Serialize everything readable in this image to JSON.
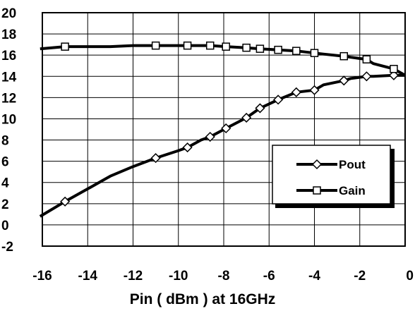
{
  "chart_data": {
    "type": "line",
    "xlabel": "Pin ( dBm ) at 16GHz",
    "xlim": [
      -16,
      0
    ],
    "ylim": [
      -2,
      20
    ],
    "xticks": [
      "-16",
      "-14",
      "-12",
      "-10",
      "-8",
      "-6",
      "-4",
      "-2",
      "0"
    ],
    "yticks": [
      "20",
      "18",
      "16",
      "14",
      "12",
      "10",
      "8",
      "6",
      "4",
      "2",
      "0",
      "-2"
    ],
    "grid": true,
    "legend_position": "bottom-right",
    "series": [
      {
        "name": "Pout",
        "marker": "diamond",
        "x": [
          -16.1,
          -15.0,
          -14.0,
          -13.0,
          -12.0,
          -11.0,
          -10.0,
          -9.6,
          -9.0,
          -8.6,
          -7.9,
          -7.0,
          -6.4,
          -5.6,
          -4.8,
          -4.0,
          -3.6,
          -2.7,
          -2.4,
          -1.7,
          -1.4,
          -0.5,
          0.0
        ],
        "y": [
          0.8,
          2.2,
          3.4,
          4.6,
          5.5,
          6.3,
          7.0,
          7.3,
          8.0,
          8.3,
          9.1,
          10.1,
          11.0,
          11.8,
          12.5,
          12.7,
          13.2,
          13.6,
          13.8,
          14.0,
          14.0,
          14.1,
          14.1
        ]
      },
      {
        "name": "Gain",
        "marker": "square",
        "x": [
          -16.1,
          -15.0,
          -14.0,
          -13.0,
          -12.0,
          -11.0,
          -10.0,
          -9.6,
          -9.0,
          -8.6,
          -7.9,
          -7.0,
          -6.4,
          -5.6,
          -4.8,
          -4.0,
          -3.6,
          -2.7,
          -2.4,
          -1.7,
          -1.4,
          -0.5,
          0.0
        ],
        "y": [
          16.6,
          16.8,
          16.8,
          16.8,
          16.9,
          16.9,
          16.9,
          16.9,
          16.9,
          16.9,
          16.8,
          16.7,
          16.6,
          16.5,
          16.4,
          16.2,
          16.1,
          15.9,
          15.8,
          15.6,
          15.2,
          14.7,
          14.1
        ]
      }
    ],
    "marker_x": {
      "Pout": [
        -15.0,
        -11.0,
        -9.6,
        -8.6,
        -7.9,
        -7.0,
        -6.4,
        -5.6,
        -4.8,
        -4.0,
        -2.7,
        -1.7,
        -0.5
      ],
      "Gain": [
        -15.0,
        -11.0,
        -9.6,
        -8.6,
        -7.9,
        -7.0,
        -6.4,
        -5.6,
        -4.8,
        -4.0,
        -2.7,
        -1.7,
        -0.5
      ]
    },
    "colors": {
      "line": "#000000",
      "marker_fill": "#ffffff",
      "background": "#ffffff"
    }
  }
}
